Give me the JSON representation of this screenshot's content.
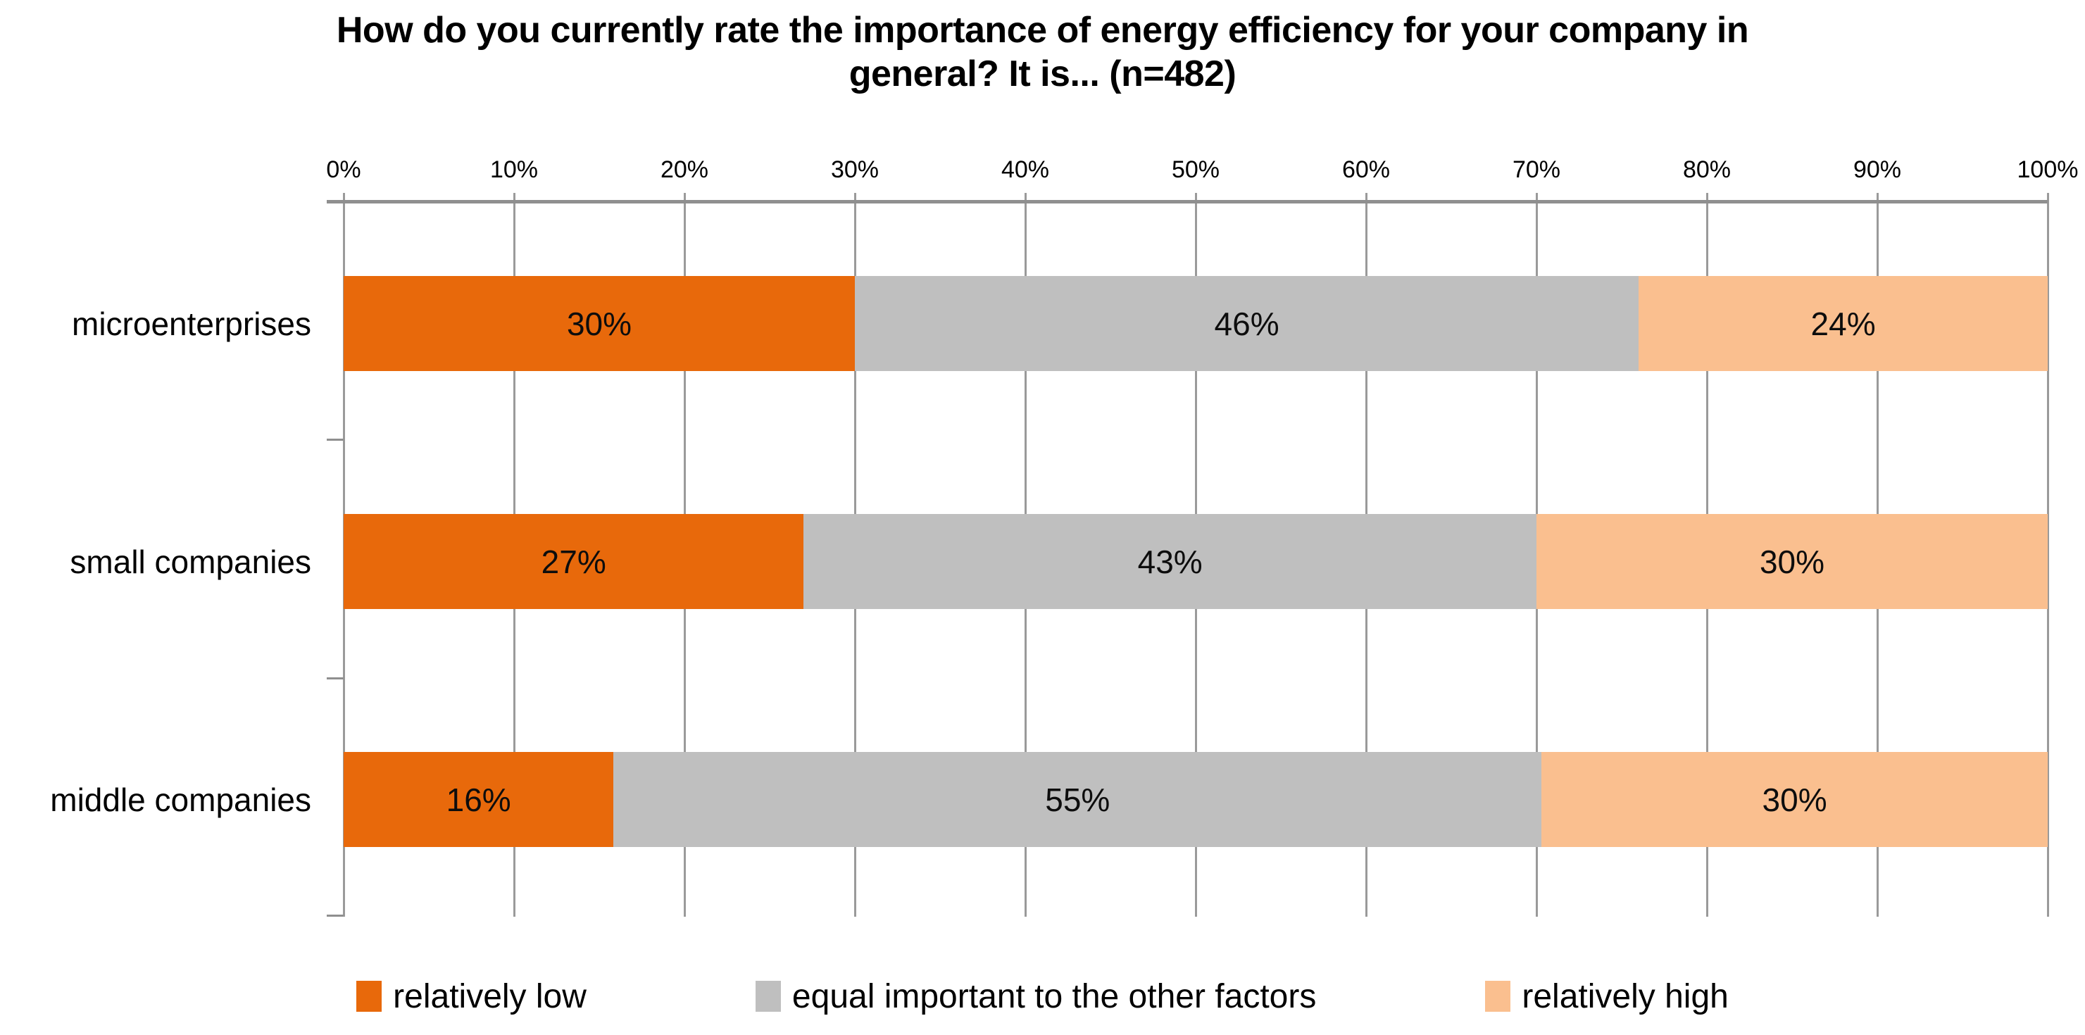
{
  "title": {
    "line1": "How do you currently rate the importance of energy efficiency for your company in",
    "line2": "general? It is... (n=482)"
  },
  "colors": {
    "relatively_low": "#E8690B",
    "equal_important": "#BFBFBF",
    "relatively_high": "#FABF8F",
    "gridline": "#9A9A9A",
    "axis_line": "#8F8F8F"
  },
  "chart_data": {
    "type": "bar",
    "subtype": "horizontal-stacked-100pct",
    "title": "How do you currently rate the importance of energy efficiency for your company in general? It is... (n=482)",
    "categories": [
      "microenterprises",
      "small companies",
      "middle companies"
    ],
    "series": [
      {
        "name": "relatively low",
        "color": "#E8690B",
        "values": [
          30,
          27,
          16
        ]
      },
      {
        "name": "equal important to the other factors",
        "color": "#BFBFBF",
        "values": [
          46,
          43,
          55
        ]
      },
      {
        "name": "relatively high",
        "color": "#FABF8F",
        "values": [
          24,
          30,
          30
        ]
      }
    ],
    "data_labels": [
      "30%",
      "46%",
      "24%",
      "27%",
      "43%",
      "30%",
      "16%",
      "55%",
      "30%"
    ],
    "xlabel": "",
    "ylabel": "",
    "xlim": [
      0,
      100
    ],
    "x_tick_labels": [
      "0%",
      "10%",
      "20%",
      "30%",
      "40%",
      "50%",
      "60%",
      "70%",
      "80%",
      "90%",
      "100%"
    ],
    "grid": true,
    "axis_position": "top",
    "legend_position": "bottom"
  },
  "legend": {
    "items": [
      {
        "label": "relatively low",
        "color": "#E8690B"
      },
      {
        "label": "equal important to the other factors",
        "color": "#BFBFBF"
      },
      {
        "label": "relatively high",
        "color": "#FABF8F"
      }
    ]
  }
}
